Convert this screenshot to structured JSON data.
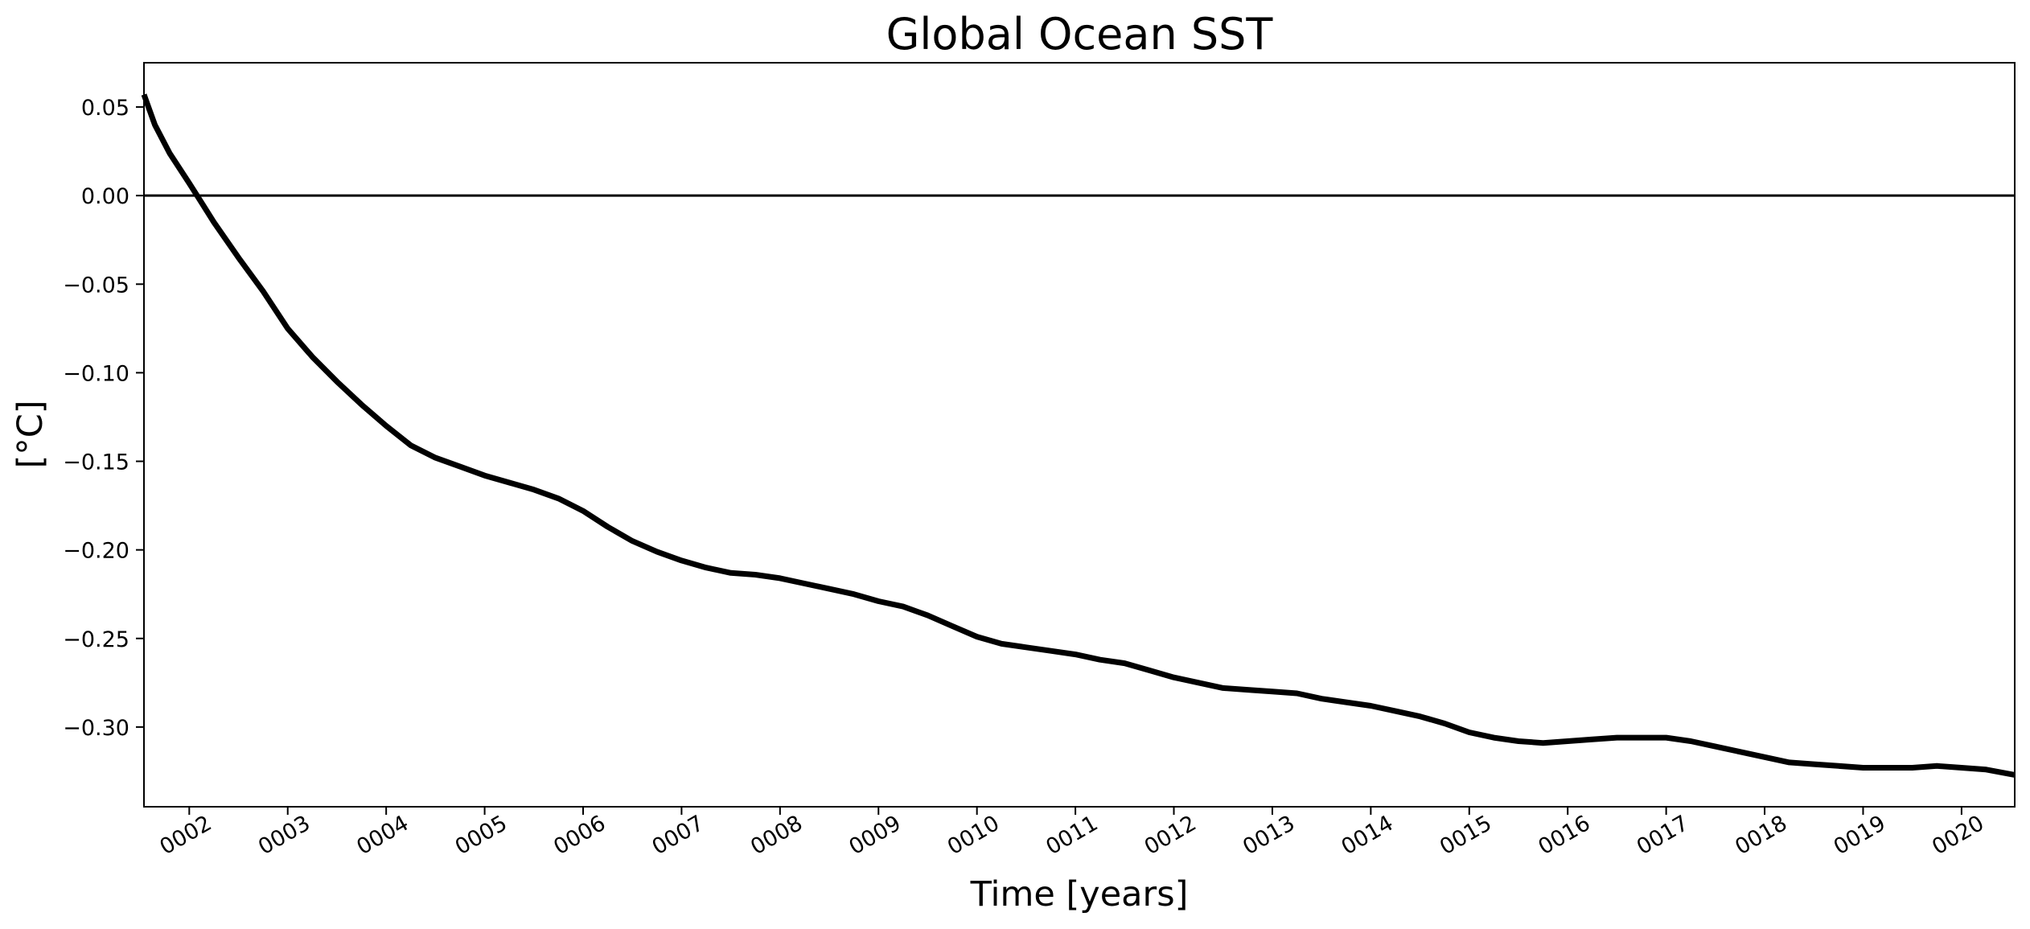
{
  "chart_data": {
    "type": "line",
    "title": "Global Ocean SST",
    "xlabel": "Time [years]",
    "ylabel": "[°C]",
    "xlim": [
      1.54,
      20.54
    ],
    "ylim": [
      -0.345,
      0.075
    ],
    "x_ticks": [
      2,
      3,
      4,
      5,
      6,
      7,
      8,
      9,
      10,
      11,
      12,
      13,
      14,
      15,
      16,
      17,
      18,
      19,
      20
    ],
    "x_tick_labels": [
      "0002",
      "0003",
      "0004",
      "0005",
      "0006",
      "0007",
      "0008",
      "0009",
      "0010",
      "0011",
      "0012",
      "0013",
      "0014",
      "0015",
      "0016",
      "0017",
      "0018",
      "0019",
      "0020"
    ],
    "y_ticks": [
      0.05,
      0.0,
      -0.05,
      -0.1,
      -0.15,
      -0.2,
      -0.25,
      -0.3
    ],
    "y_tick_labels": [
      "0.05",
      "0.00",
      "−0.05",
      "−0.10",
      "−0.15",
      "−0.20",
      "−0.25",
      "−0.30"
    ],
    "reference_line": 0.0,
    "grid": false,
    "legend": "none",
    "series": [
      {
        "color": "#000000",
        "x": [
          1.54,
          1.65,
          1.8,
          2.0,
          2.08,
          2.25,
          2.5,
          2.75,
          3.0,
          3.25,
          3.5,
          3.75,
          4.0,
          4.25,
          4.5,
          4.75,
          5.0,
          5.25,
          5.5,
          5.75,
          6.0,
          6.25,
          6.5,
          6.75,
          7.0,
          7.25,
          7.5,
          7.75,
          8.0,
          8.25,
          8.5,
          8.75,
          9.0,
          9.25,
          9.5,
          9.75,
          10.0,
          10.25,
          10.5,
          10.75,
          11.0,
          11.25,
          11.5,
          11.75,
          12.0,
          12.25,
          12.5,
          12.75,
          13.0,
          13.25,
          13.5,
          13.75,
          14.0,
          14.25,
          14.5,
          14.75,
          15.0,
          15.25,
          15.5,
          15.75,
          16.0,
          16.25,
          16.5,
          16.75,
          17.0,
          17.25,
          17.5,
          17.75,
          18.0,
          18.25,
          18.5,
          18.75,
          19.0,
          19.25,
          19.5,
          19.75,
          20.0,
          20.25,
          20.54
        ],
        "y": [
          0.057,
          0.04,
          0.024,
          0.007,
          0.0,
          -0.015,
          -0.035,
          -0.054,
          -0.075,
          -0.091,
          -0.105,
          -0.118,
          -0.13,
          -0.141,
          -0.148,
          -0.153,
          -0.158,
          -0.162,
          -0.166,
          -0.171,
          -0.178,
          -0.187,
          -0.195,
          -0.201,
          -0.206,
          -0.21,
          -0.213,
          -0.214,
          -0.216,
          -0.219,
          -0.222,
          -0.225,
          -0.229,
          -0.232,
          -0.237,
          -0.243,
          -0.249,
          -0.253,
          -0.255,
          -0.257,
          -0.259,
          -0.262,
          -0.264,
          -0.268,
          -0.272,
          -0.275,
          -0.278,
          -0.279,
          -0.28,
          -0.281,
          -0.284,
          -0.286,
          -0.288,
          -0.291,
          -0.294,
          -0.298,
          -0.303,
          -0.306,
          -0.308,
          -0.309,
          -0.308,
          -0.307,
          -0.306,
          -0.306,
          -0.306,
          -0.308,
          -0.311,
          -0.314,
          -0.317,
          -0.32,
          -0.321,
          -0.322,
          -0.323,
          -0.323,
          -0.323,
          -0.322,
          -0.323,
          -0.324,
          -0.327
        ]
      }
    ]
  }
}
